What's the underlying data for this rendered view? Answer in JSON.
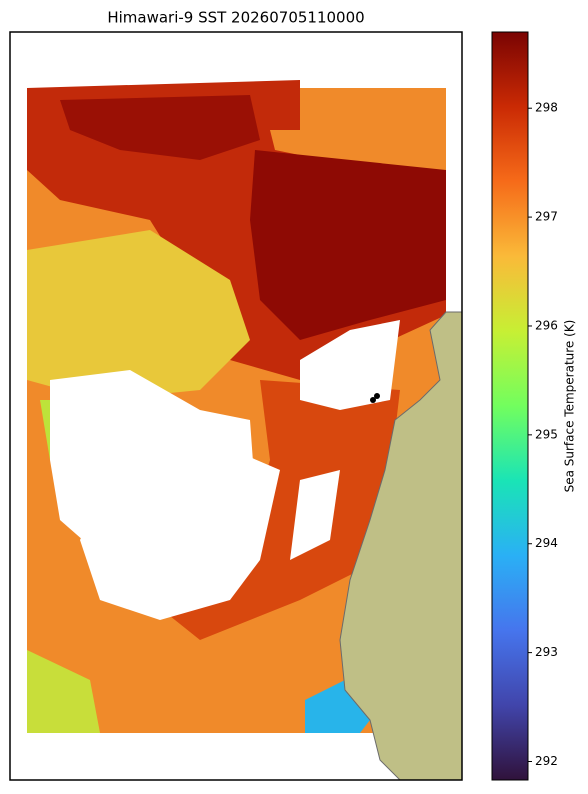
{
  "chart_data": {
    "type": "heatmap",
    "title": "Himawari-9 SST 20260705110000",
    "colorbar": {
      "label": "Sea Surface Temperature (K)",
      "lim": [
        291.83,
        298.7
      ],
      "ticks": [
        292,
        293,
        294,
        295,
        296,
        297,
        298
      ]
    }
  }
}
